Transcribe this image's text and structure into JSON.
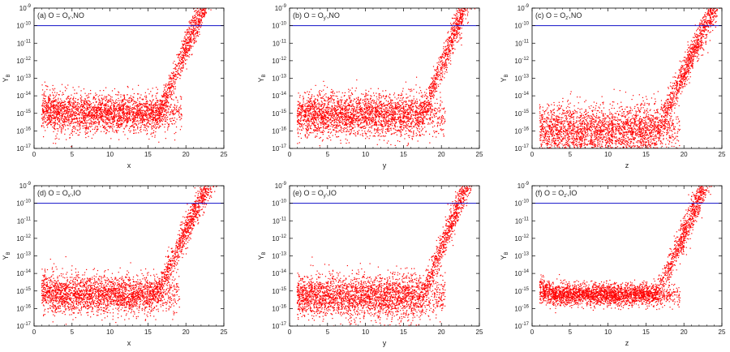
{
  "colors": {
    "scatter": "#ff0000",
    "threshold": "#1010c8",
    "axis": "#000000"
  },
  "chart_data": [
    {
      "type": "scatter",
      "title": "(a) O = O_{x'} ,NO",
      "title_parts": [
        "(a) O = O",
        "x'",
        ",NO"
      ],
      "xlabel": "x",
      "ylabel": "Y_B",
      "ylabel_parts": [
        "Y",
        "B"
      ],
      "xlim": [
        0,
        25
      ],
      "ylim_exp": [
        -17,
        -9
      ],
      "yscale": "log",
      "threshold_exp": -10,
      "xticks": [
        "0",
        "5",
        "10",
        "15",
        "20",
        "25"
      ],
      "yticks": [
        "-17",
        "-16",
        "-15",
        "-14",
        "-13",
        "-12",
        "-11",
        "-10",
        "-9"
      ],
      "shape": {
        "plateau_exp": -15,
        "spread": 0.55,
        "x_start": 1,
        "knee": 16.5,
        "slope": 1.05,
        "rise_spread": 0.42,
        "spike": true
      }
    },
    {
      "type": "scatter",
      "title": "(b) O = O_{y'} ,NO",
      "title_parts": [
        "(b) O = O",
        "y'",
        ",NO"
      ],
      "xlabel": "y",
      "ylabel": "Y_B",
      "ylabel_parts": [
        "Y",
        "B"
      ],
      "xlim": [
        0,
        25
      ],
      "ylim_exp": [
        -17,
        -9
      ],
      "yscale": "log",
      "threshold_exp": -10,
      "xticks": [
        "0",
        "5",
        "10",
        "15",
        "20",
        "25"
      ],
      "yticks": [
        "-17",
        "-16",
        "-15",
        "-14",
        "-13",
        "-12",
        "-11",
        "-10",
        "-9"
      ],
      "shape": {
        "plateau_exp": -15.1,
        "spread": 0.6,
        "x_start": 1,
        "knee": 17.5,
        "slope": 1.1,
        "rise_spread": 0.42,
        "spike": false
      }
    },
    {
      "type": "scatter",
      "title": "(c) O = O_{z'} ,NO",
      "title_parts": [
        "(c) O = O",
        "z'",
        ",NO"
      ],
      "xlabel": "z",
      "ylabel": "Y_B",
      "ylabel_parts": [
        "Y",
        "B"
      ],
      "xlim": [
        0,
        25
      ],
      "ylim_exp": [
        -17,
        -9
      ],
      "yscale": "log",
      "threshold_exp": -10,
      "xticks": [
        "0",
        "5",
        "10",
        "15",
        "20",
        "25"
      ],
      "yticks": [
        "-17",
        "-16",
        "-15",
        "-14",
        "-13",
        "-12",
        "-11",
        "-10",
        "-9"
      ],
      "shape": {
        "plateau_exp": -16,
        "spread": 0.75,
        "x_start": 1,
        "knee": 16.5,
        "slope": 0.95,
        "rise_spread": 0.42,
        "spike": false
      }
    },
    {
      "type": "scatter",
      "title": "(d) O = O_{x'} ,IO",
      "title_parts": [
        "(d) O = O",
        "x'",
        ",IO"
      ],
      "xlabel": "x",
      "ylabel": "Y_B",
      "ylabel_parts": [
        "Y",
        "B"
      ],
      "xlim": [
        0,
        25
      ],
      "ylim_exp": [
        -17,
        -9
      ],
      "yscale": "log",
      "threshold_exp": -10,
      "xticks": [
        "0",
        "5",
        "10",
        "15",
        "20",
        "25"
      ],
      "yticks": [
        "-17",
        "-16",
        "-15",
        "-14",
        "-13",
        "-12",
        "-11",
        "-10",
        "-9"
      ],
      "shape": {
        "plateau_exp": -15.2,
        "spread": 0.55,
        "x_start": 1,
        "knee": 16.2,
        "slope": 0.95,
        "rise_spread": 0.42,
        "spike": true
      }
    },
    {
      "type": "scatter",
      "title": "(e) O = O_{y'} ,IO",
      "title_parts": [
        "(e) O = O",
        "y'",
        ",IO"
      ],
      "xlabel": "y",
      "ylabel": "Y_B",
      "ylabel_parts": [
        "Y",
        "B"
      ],
      "xlim": [
        0,
        25
      ],
      "ylim_exp": [
        -17,
        -9
      ],
      "yscale": "log",
      "threshold_exp": -10,
      "xticks": [
        "0",
        "5",
        "10",
        "15",
        "20",
        "25"
      ],
      "yticks": [
        "-17",
        "-16",
        "-15",
        "-14",
        "-13",
        "-12",
        "-11",
        "-10",
        "-9"
      ],
      "shape": {
        "plateau_exp": -15.3,
        "spread": 0.6,
        "x_start": 1,
        "knee": 17.5,
        "slope": 1.1,
        "rise_spread": 0.42,
        "spike": false
      }
    },
    {
      "type": "scatter",
      "title": "(f) O = O_{z'} ,IO",
      "title_parts": [
        "(f) O = O",
        "z'",
        ",IO"
      ],
      "xlabel": "z",
      "ylabel": "Y_B",
      "ylabel_parts": [
        "Y",
        "B"
      ],
      "xlim": [
        0,
        25
      ],
      "ylim_exp": [
        -17,
        -9
      ],
      "yscale": "log",
      "threshold_exp": -10,
      "xticks": [
        "0",
        "5",
        "10",
        "15",
        "20",
        "25"
      ],
      "yticks": [
        "-17",
        "-16",
        "-15",
        "-14",
        "-13",
        "-12",
        "-11",
        "-10",
        "-9"
      ],
      "shape": {
        "plateau_exp": -15.2,
        "spread": 0.3,
        "x_start": 1,
        "knee": 16.5,
        "slope": 1.0,
        "rise_spread": 0.42,
        "spike": true
      }
    }
  ]
}
